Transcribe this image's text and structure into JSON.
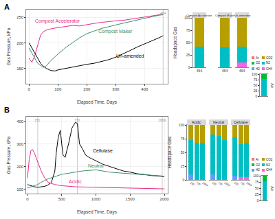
{
  "chart_data": [
    {
      "type": "line",
      "title": "A",
      "x_label": "Elapsed Time, Days",
      "y_label": "Gas Pressure, kPa",
      "xlim": [
        -10,
        480
      ],
      "xticks": [
        0,
        100,
        200,
        300,
        400
      ],
      "ylim": [
        120,
        265
      ],
      "yticks": [
        150,
        200,
        250
      ],
      "grid": true,
      "vlines": [
        464
      ],
      "series": [
        {
          "name": "Compost Accelerator",
          "color": "#E7298A",
          "x": [
            0,
            5,
            10,
            20,
            30,
            40,
            50,
            60,
            80,
            100,
            125,
            150,
            175,
            200,
            225,
            250,
            275,
            300,
            325,
            350,
            375,
            400,
            425,
            450,
            464
          ],
          "values": [
            170,
            165,
            162,
            175,
            195,
            215,
            222,
            225,
            228,
            230,
            232,
            234,
            233,
            236,
            238,
            240,
            241,
            243,
            244,
            246,
            248,
            250,
            252,
            255,
            256
          ]
        },
        {
          "name": "Compost Maker",
          "color": "#3B8F6B",
          "x": [
            0,
            10,
            20,
            30,
            40,
            50,
            60,
            75,
            100,
            125,
            150,
            175,
            200,
            250,
            300,
            350,
            400,
            450,
            464
          ],
          "values": [
            190,
            180,
            168,
            160,
            156,
            152,
            155,
            165,
            178,
            190,
            200,
            210,
            218,
            228,
            235,
            242,
            248,
            254,
            255
          ]
        },
        {
          "name": "Un-amended",
          "color": "#000000",
          "x": [
            0,
            10,
            20,
            30,
            40,
            50,
            60,
            75,
            90,
            100,
            125,
            150,
            175,
            200,
            225,
            250,
            275,
            300,
            325,
            350,
            375,
            400,
            425,
            450,
            464
          ],
          "values": [
            200,
            190,
            180,
            168,
            160,
            154,
            150,
            146,
            145,
            147,
            150,
            152,
            155,
            158,
            160,
            163,
            167,
            172,
            178,
            185,
            192,
            198,
            203,
            210,
            214
          ]
        }
      ]
    },
    {
      "type": "bar",
      "stacked": true,
      "y_label": "Headspace Gas",
      "ylim": [
        0,
        100
      ],
      "yticks": [
        0,
        25,
        50,
        75,
        100
      ],
      "grid": true,
      "facets": [
        {
          "title": "Compost Accelerator",
          "categories": [
            "464"
          ]
        },
        {
          "title": "Compost Maker",
          "categories": [
            "464"
          ]
        },
        {
          "title": "Un-amended",
          "categories": [
            "464"
          ]
        }
      ],
      "series": [
        {
          "name": "Ar",
          "color": "#F8766D",
          "values": [
            [
              0
            ],
            [
              0
            ],
            [
              0
            ]
          ]
        },
        {
          "name": "CO2",
          "color": "#B79F00",
          "values": [
            [
              58
            ],
            [
              60
            ],
            [
              58
            ]
          ]
        },
        {
          "name": "O2",
          "color": "#00BA38",
          "values": [
            [
              0
            ],
            [
              0
            ],
            [
              0
            ]
          ]
        },
        {
          "name": "N2",
          "color": "#00BFC4",
          "values": [
            [
              42
            ],
            [
              40
            ],
            [
              32
            ]
          ]
        },
        {
          "name": "H2",
          "color": "#619CFF",
          "values": [
            [
              0
            ],
            [
              0
            ],
            [
              0
            ]
          ]
        },
        {
          "name": "CH4",
          "color": "#F564E3",
          "values": [
            [
              0
            ],
            [
              0
            ],
            [
              10
            ]
          ]
        }
      ]
    },
    {
      "type": "bar",
      "stacked": true,
      "title": "Air",
      "legend": "top",
      "ylim": [
        0,
        100
      ],
      "yticks": [
        0,
        25,
        50,
        75,
        100
      ],
      "grid": true,
      "categories": [
        null
      ],
      "series": [
        {
          "name": "Ar",
          "color": "#F8766D",
          "values": [
            0.93
          ]
        },
        {
          "name": "CO2",
          "color": "#B79F00",
          "values": [
            0.04
          ]
        },
        {
          "name": "O2",
          "color": "#00BA38",
          "values": [
            20.95
          ]
        },
        {
          "name": "N2",
          "color": "#00BFC4",
          "values": [
            78.08
          ]
        },
        {
          "name": "H2",
          "color": "#619CFF",
          "values": [
            0
          ]
        },
        {
          "name": "CH4",
          "color": "#F564E3",
          "values": [
            0
          ]
        }
      ]
    },
    {
      "type": "line",
      "title": "B",
      "x_label": "Elapsed Time, Days",
      "y_label": "Gas Pressure, kPa",
      "xlim": [
        -20,
        2050
      ],
      "xticks": [
        0,
        500,
        1000,
        1500,
        2000
      ],
      "ylim": [
        80,
        420
      ],
      "yticks": [
        100,
        200,
        300,
        400
      ],
      "grid": true,
      "vlines": [
        150,
        730,
        1969
      ],
      "series": [
        {
          "name": "Cellulase",
          "color": "#000000",
          "x": [
            0,
            50,
            100,
            150,
            200,
            250,
            300,
            350,
            400,
            420,
            450,
            480,
            500,
            520,
            550,
            600,
            650,
            700,
            730,
            760,
            800,
            850,
            900,
            1000,
            1100,
            1200,
            1300,
            1400,
            1500,
            1600,
            1700,
            1800,
            1900,
            1969,
            2000
          ],
          "values": [
            120,
            115,
            110,
            108,
            110,
            112,
            118,
            130,
            180,
            260,
            330,
            360,
            300,
            250,
            240,
            300,
            370,
            395,
            390,
            300,
            280,
            250,
            240,
            225,
            210,
            200,
            190,
            180,
            175,
            168,
            165,
            160,
            158,
            155,
            155
          ]
        },
        {
          "name": "Neutral",
          "color": "#3B8F6B",
          "x": [
            0,
            50,
            100,
            150,
            200,
            300,
            400,
            500,
            600,
            700,
            800,
            1000,
            1200,
            1400,
            1600,
            1800,
            1969
          ],
          "values": [
            105,
            110,
            115,
            120,
            130,
            145,
            155,
            165,
            170,
            175,
            180,
            185,
            175,
            170,
            165,
            160,
            158
          ]
        },
        {
          "name": "Acidic",
          "color": "#E7298A",
          "x": [
            0,
            25,
            50,
            75,
            100,
            150,
            200,
            250,
            300,
            400,
            500,
            700,
            1000,
            1300,
            1600,
            1969,
            2000
          ],
          "values": [
            150,
            230,
            270,
            275,
            260,
            220,
            180,
            150,
            130,
            120,
            115,
            110,
            108,
            105,
            104,
            102,
            101
          ]
        }
      ]
    },
    {
      "type": "bar",
      "stacked": true,
      "y_label": "Headspace Gas",
      "ylim": [
        0,
        100
      ],
      "yticks": [
        0,
        25,
        50,
        75,
        100
      ],
      "grid": true,
      "facets": [
        {
          "title": "Acidic",
          "categories": [
            "150",
            "730",
            "1969"
          ]
        },
        {
          "title": "Neutral",
          "categories": [
            "150",
            "730",
            "1969"
          ]
        },
        {
          "title": "Cellulase",
          "categories": [
            "150",
            "730",
            "1969"
          ]
        }
      ],
      "series": [
        {
          "name": "Ar",
          "color": "#F8766D",
          "values": [
            [
              0,
              0,
              0
            ],
            [
              0,
              0,
              0
            ],
            [
              0,
              0,
              0
            ]
          ]
        },
        {
          "name": "CO2",
          "color": "#B79F00",
          "values": [
            [
              28,
              32,
              32
            ],
            [
              18,
              20,
              28
            ],
            [
              22,
              35,
              33
            ]
          ]
        },
        {
          "name": "O2",
          "color": "#00BA38",
          "values": [
            [
              0,
              0,
              0
            ],
            [
              0,
              0,
              0
            ],
            [
              0,
              0,
              0
            ]
          ]
        },
        {
          "name": "N2",
          "color": "#00BFC4",
          "values": [
            [
              62,
              68,
              68
            ],
            [
              72,
              80,
              72
            ],
            [
              70,
              60,
              62
            ]
          ]
        },
        {
          "name": "H2",
          "color": "#619CFF",
          "values": [
            [
              10,
              0,
              0
            ],
            [
              10,
              0,
              0
            ],
            [
              8,
              0,
              0
            ]
          ]
        },
        {
          "name": "CH4",
          "color": "#F564E3",
          "values": [
            [
              0,
              0,
              0
            ],
            [
              0,
              0,
              0
            ],
            [
              0,
              5,
              5
            ]
          ]
        }
      ]
    },
    {
      "type": "bar",
      "stacked": true,
      "title": "Air",
      "legend": "top",
      "ylim": [
        0,
        100
      ],
      "yticks": [
        0,
        25,
        50,
        75,
        100
      ],
      "grid": true,
      "categories": [
        null
      ],
      "series": [
        {
          "name": "Ar",
          "color": "#F8766D",
          "values": [
            0.93
          ]
        },
        {
          "name": "CO2",
          "color": "#B79F00",
          "values": [
            0.04
          ]
        },
        {
          "name": "O2",
          "color": "#00BA38",
          "values": [
            20.95
          ]
        },
        {
          "name": "N2",
          "color": "#00BFC4",
          "values": [
            78.08
          ]
        },
        {
          "name": "H2",
          "color": "#619CFF",
          "values": [
            0
          ]
        },
        {
          "name": "CH4",
          "color": "#F564E3",
          "values": [
            0
          ]
        }
      ]
    }
  ]
}
